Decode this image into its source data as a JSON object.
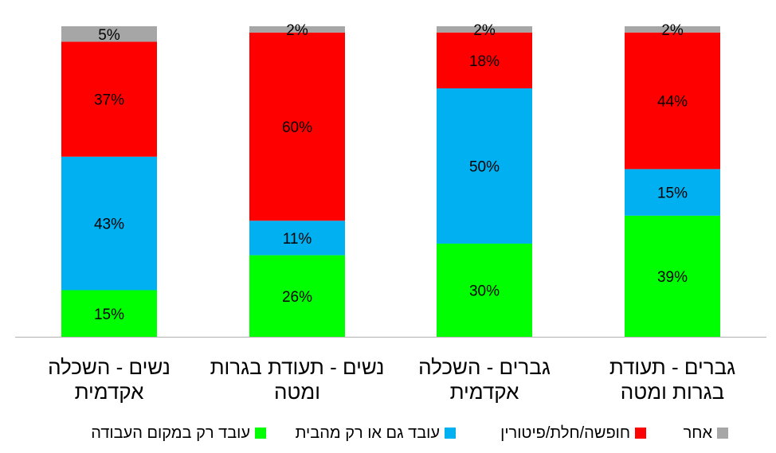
{
  "chart_data": {
    "type": "bar",
    "stacked": true,
    "percent": true,
    "categories": [
      [
        "נשים - השכלה",
        "אקדמית"
      ],
      [
        "נשים - תעודת בגרות",
        "ומטה"
      ],
      [
        "גברים - השכלה",
        "אקדמית"
      ],
      [
        "גברים - תעודת",
        "בגרות ומטה"
      ]
    ],
    "series": [
      {
        "name": "עובד רק במקום העבודה",
        "color": "#00ff00",
        "values": [
          15,
          26,
          30,
          39
        ],
        "labels": [
          "15%",
          "26%",
          "30%",
          "39%"
        ]
      },
      {
        "name": "עובד גם או רק מהבית",
        "color": "#00b0f0",
        "values": [
          43,
          11,
          50,
          15
        ],
        "labels": [
          "43%",
          "11%",
          "50%",
          "15%"
        ]
      },
      {
        "name": "חופשה/חלת/פיטורין",
        "color": "#ff0000",
        "values": [
          37,
          60,
          18,
          44
        ],
        "labels": [
          "37%",
          "60%",
          "18%",
          "44%"
        ]
      },
      {
        "name": "אחר",
        "color": "#a6a6a6",
        "values": [
          5,
          2,
          2,
          2
        ],
        "labels": [
          "5%",
          "2%",
          "2%",
          "2%"
        ]
      }
    ],
    "ylim": [
      0,
      100
    ],
    "grid": false,
    "legend_position": "bottom"
  }
}
